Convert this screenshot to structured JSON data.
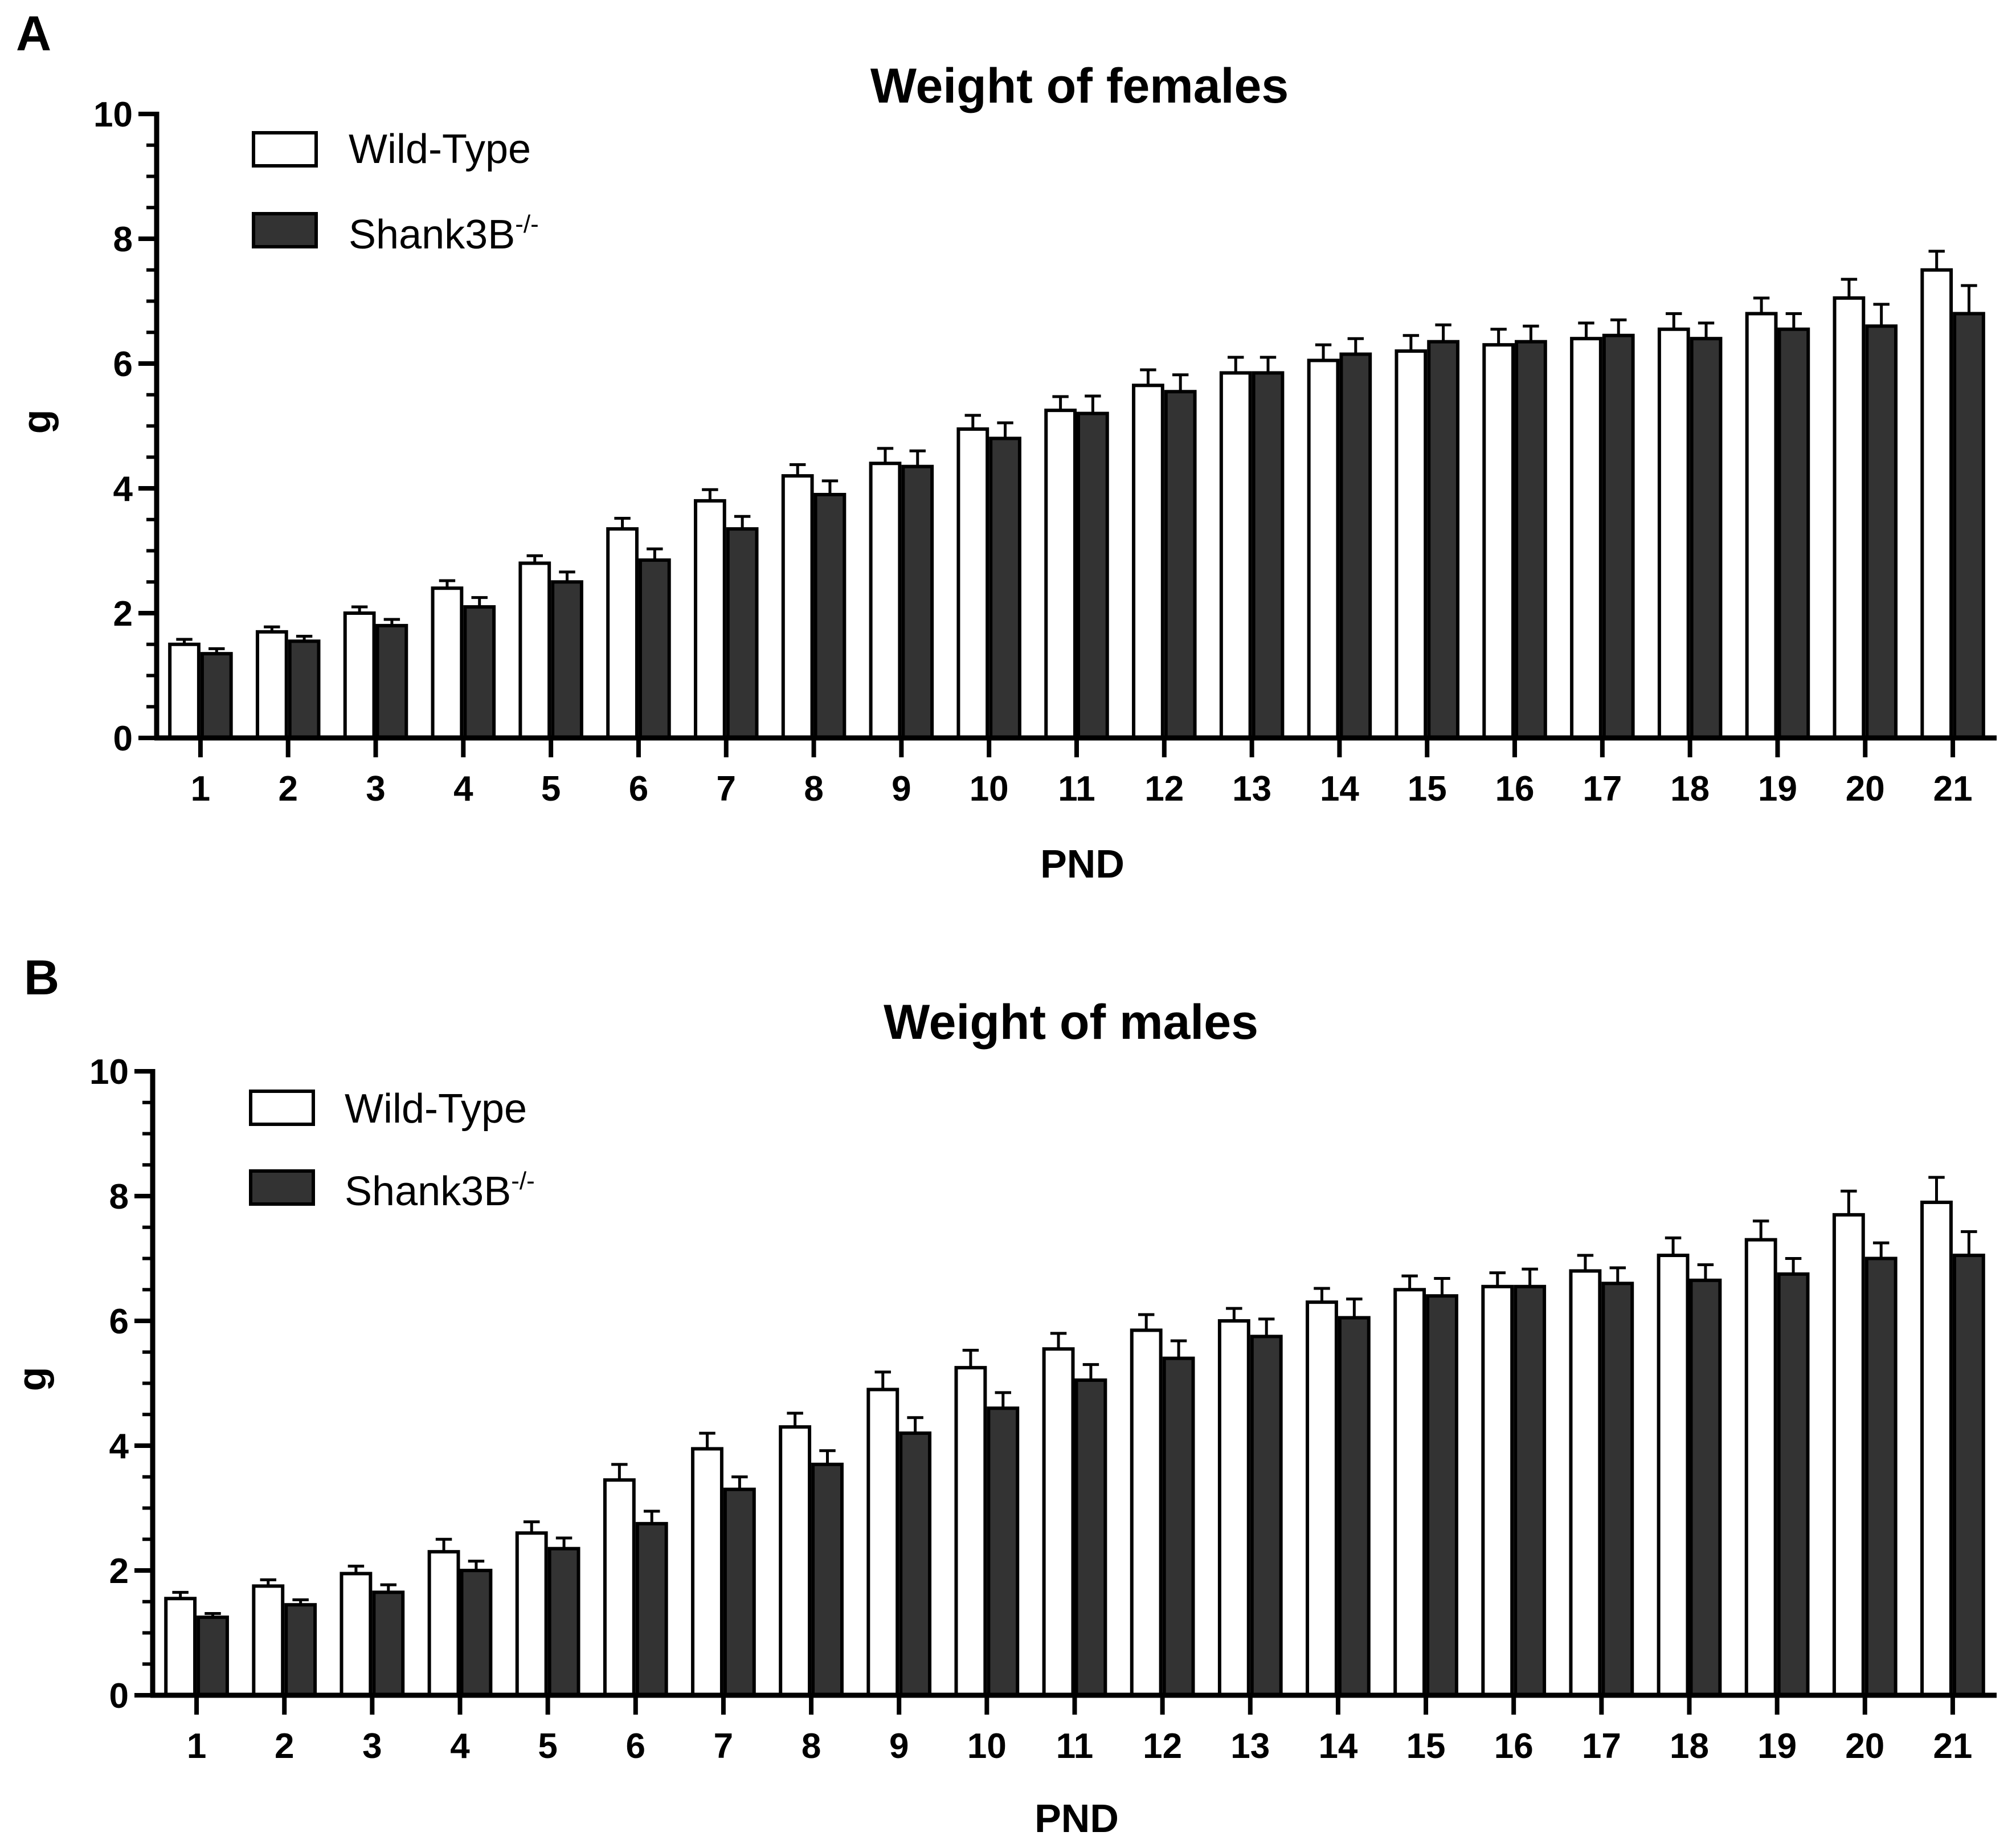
{
  "figure": {
    "panels": [
      {
        "id": "A",
        "label": "A"
      },
      {
        "id": "B",
        "label": "B"
      }
    ]
  },
  "colors": {
    "wt_fill": "#ffffff",
    "ko_fill": "#333333",
    "stroke": "#000000",
    "background": "#ffffff"
  },
  "chart_data": [
    {
      "panel": "A",
      "type": "bar",
      "title": "Weight of females",
      "xlabel": "PND",
      "ylabel": "g",
      "ylim": [
        0,
        10
      ],
      "yticks": [
        0,
        2,
        4,
        6,
        8,
        10
      ],
      "grid": false,
      "legend_position": "top-left",
      "categories": [
        "1",
        "2",
        "3",
        "4",
        "5",
        "6",
        "7",
        "8",
        "9",
        "10",
        "11",
        "12",
        "13",
        "14",
        "15",
        "16",
        "17",
        "18",
        "19",
        "20",
        "21"
      ],
      "series": [
        {
          "name": "Wild-Type",
          "legend_main": "Wild-Type",
          "legend_sup": "",
          "fill": "white",
          "values": [
            1.5,
            1.7,
            2.0,
            2.4,
            2.8,
            3.35,
            3.8,
            4.2,
            4.4,
            4.95,
            5.25,
            5.65,
            5.85,
            6.05,
            6.2,
            6.3,
            6.4,
            6.55,
            6.8,
            7.05,
            7.5
          ],
          "errors": [
            0.08,
            0.08,
            0.1,
            0.12,
            0.12,
            0.17,
            0.18,
            0.18,
            0.24,
            0.22,
            0.22,
            0.25,
            0.25,
            0.25,
            0.25,
            0.25,
            0.25,
            0.25,
            0.25,
            0.3,
            0.3
          ]
        },
        {
          "name": "Shank3B-/-",
          "legend_main": "Shank3B",
          "legend_sup": "-/-",
          "fill": "dark",
          "values": [
            1.35,
            1.55,
            1.8,
            2.1,
            2.5,
            2.85,
            3.35,
            3.9,
            4.35,
            4.8,
            5.2,
            5.55,
            5.85,
            6.15,
            6.35,
            6.35,
            6.45,
            6.4,
            6.55,
            6.6,
            6.8
          ],
          "errors": [
            0.08,
            0.08,
            0.1,
            0.15,
            0.16,
            0.18,
            0.2,
            0.22,
            0.25,
            0.25,
            0.28,
            0.27,
            0.25,
            0.25,
            0.27,
            0.25,
            0.25,
            0.25,
            0.25,
            0.35,
            0.45
          ]
        }
      ]
    },
    {
      "panel": "B",
      "type": "bar",
      "title": "Weight of males",
      "xlabel": "PND",
      "ylabel": "g",
      "ylim": [
        0,
        10
      ],
      "yticks": [
        0,
        2,
        4,
        6,
        8,
        10
      ],
      "grid": false,
      "legend_position": "top-left",
      "categories": [
        "1",
        "2",
        "3",
        "4",
        "5",
        "6",
        "7",
        "8",
        "9",
        "10",
        "11",
        "12",
        "13",
        "14",
        "15",
        "16",
        "17",
        "18",
        "19",
        "20",
        "21"
      ],
      "series": [
        {
          "name": "Wild-Type",
          "legend_main": "Wild-Type",
          "legend_sup": "",
          "fill": "white",
          "values": [
            1.55,
            1.75,
            1.95,
            2.3,
            2.6,
            3.45,
            3.95,
            4.3,
            4.9,
            5.25,
            5.55,
            5.85,
            6.0,
            6.3,
            6.5,
            6.55,
            6.8,
            7.05,
            7.3,
            7.7,
            7.9
          ],
          "errors": [
            0.1,
            0.1,
            0.12,
            0.2,
            0.18,
            0.25,
            0.25,
            0.22,
            0.28,
            0.28,
            0.25,
            0.25,
            0.2,
            0.22,
            0.22,
            0.22,
            0.25,
            0.28,
            0.3,
            0.38,
            0.4
          ]
        },
        {
          "name": "Shank3B-/-",
          "legend_main": "Shank3B",
          "legend_sup": "-/-",
          "fill": "dark",
          "values": [
            1.25,
            1.45,
            1.65,
            2.0,
            2.35,
            2.75,
            3.3,
            3.7,
            4.2,
            4.6,
            5.05,
            5.4,
            5.75,
            6.05,
            6.4,
            6.55,
            6.6,
            6.65,
            6.75,
            7.0,
            7.05
          ],
          "errors": [
            0.06,
            0.08,
            0.12,
            0.15,
            0.17,
            0.2,
            0.2,
            0.22,
            0.25,
            0.25,
            0.25,
            0.28,
            0.28,
            0.3,
            0.28,
            0.28,
            0.25,
            0.25,
            0.25,
            0.25,
            0.38
          ]
        }
      ]
    }
  ]
}
